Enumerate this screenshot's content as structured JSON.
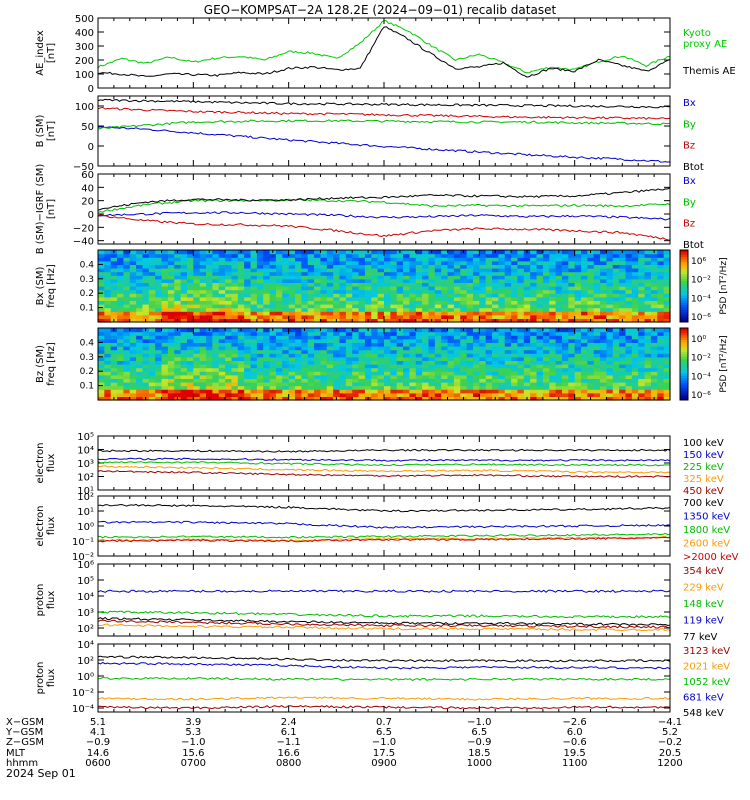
{
  "title": "GEO−KOMPSAT−2A 128.2E (2024−09−01) recalib dataset",
  "footer_date": "2024 Sep 01",
  "orbit": {
    "row_labels": [
      "X−GSM",
      "Y−GSM",
      "Z−GSM",
      "MLT",
      "hhmm"
    ],
    "columns": [
      [
        "5.1",
        "4.1",
        "−0.9",
        "14.6",
        "0600"
      ],
      [
        "3.9",
        "5.3",
        "−1.0",
        "15.6",
        "0700"
      ],
      [
        "2.4",
        "6.1",
        "−1.1",
        "16.6",
        "0800"
      ],
      [
        "0.7",
        "6.5",
        "−1.0",
        "17.5",
        "0900"
      ],
      [
        "−1.0",
        "6.5",
        "−0.9",
        "18.5",
        "1000"
      ],
      [
        "−2.6",
        "6.0",
        "−0.6",
        "19.5",
        "1100"
      ],
      [
        "−4.1",
        "5.2",
        "−0.2",
        "20.5",
        "1200"
      ]
    ]
  },
  "chart_data": [
    {
      "type": "line",
      "id": "ae",
      "ylabel": "AE_index\n[nT]",
      "ylim": [
        0,
        500
      ],
      "yticks": [
        "0",
        "100",
        "200",
        "300",
        "400",
        "500"
      ],
      "legend": [
        {
          "label": "Kyoto\nproxy AE",
          "color": "#00cc00"
        },
        {
          "label": "Themis AE",
          "color": "#000000"
        }
      ],
      "x": [
        6.0,
        6.25,
        6.5,
        6.75,
        7.0,
        7.25,
        7.5,
        7.75,
        8.0,
        8.25,
        8.5,
        8.75,
        9.0,
        9.25,
        9.5,
        9.75,
        10.0,
        10.25,
        10.5,
        10.75,
        11.0,
        11.25,
        11.5,
        11.75,
        12.0
      ],
      "series": [
        {
          "color": "#00cc00",
          "values": [
            150,
            210,
            175,
            220,
            185,
            215,
            225,
            200,
            260,
            250,
            210,
            320,
            480,
            410,
            300,
            200,
            240,
            180,
            110,
            150,
            130,
            190,
            230,
            160,
            230
          ]
        },
        {
          "color": "#000000",
          "values": [
            110,
            100,
            80,
            100,
            95,
            90,
            110,
            100,
            140,
            150,
            130,
            140,
            440,
            350,
            240,
            140,
            150,
            180,
            80,
            140,
            120,
            200,
            160,
            120,
            200
          ]
        }
      ]
    },
    {
      "type": "line",
      "id": "bsm",
      "ylabel": "B (SM)\n[nT]",
      "ylim": [
        -50,
        125
      ],
      "yticks": [
        "−50",
        "0",
        "50",
        "100"
      ],
      "legend": [
        {
          "label": "Bx",
          "color": "#0000cc"
        },
        {
          "label": "By",
          "color": "#00bb00"
        },
        {
          "label": "Bz",
          "color": "#cc0000"
        },
        {
          "label": "Btot",
          "color": "#000000"
        }
      ],
      "x": [
        6.0,
        6.5,
        7.0,
        7.5,
        8.0,
        8.5,
        9.0,
        9.5,
        10.0,
        10.5,
        11.0,
        11.5,
        12.0
      ],
      "series": [
        {
          "color": "#0000cc",
          "values": [
            48,
            42,
            33,
            24,
            15,
            7,
            -1,
            -8,
            -15,
            -22,
            -28,
            -33,
            -40
          ]
        },
        {
          "color": "#00bb00",
          "values": [
            43,
            52,
            60,
            62,
            63,
            63,
            62,
            61,
            60,
            60,
            58,
            57,
            55
          ]
        },
        {
          "color": "#cc0000",
          "values": [
            95,
            90,
            86,
            84,
            81,
            80,
            78,
            76,
            74,
            72,
            71,
            70,
            68
          ]
        },
        {
          "color": "#000000",
          "values": [
            115,
            113,
            111,
            108,
            106,
            105,
            104,
            103,
            102,
            101,
            100,
            99,
            97
          ]
        }
      ]
    },
    {
      "type": "line",
      "id": "bdiff",
      "ylabel": "B (SM)−IGRF (SM)\n[nT]",
      "ylim": [
        -45,
        60
      ],
      "yticks": [
        "−40",
        "−20",
        "0",
        "20",
        "40",
        "60"
      ],
      "legend": [
        {
          "label": "Bx",
          "color": "#0000cc"
        },
        {
          "label": "By",
          "color": "#00bb00"
        },
        {
          "label": "Bz",
          "color": "#cc0000"
        },
        {
          "label": "Btot",
          "color": "#000000"
        }
      ],
      "x": [
        6.0,
        6.5,
        7.0,
        7.5,
        8.0,
        8.5,
        9.0,
        9.5,
        10.0,
        10.5,
        11.0,
        11.5,
        12.0
      ],
      "series": [
        {
          "color": "#0000cc",
          "values": [
            -2,
            0,
            2,
            2,
            0,
            -2,
            -5,
            -4,
            -2,
            -4,
            -3,
            -5,
            -8
          ]
        },
        {
          "color": "#00bb00",
          "values": [
            3,
            14,
            20,
            20,
            21,
            20,
            18,
            12,
            13,
            12,
            13,
            12,
            15
          ]
        },
        {
          "color": "#cc0000",
          "values": [
            -2,
            -10,
            -15,
            -16,
            -18,
            -25,
            -33,
            -25,
            -22,
            -23,
            -25,
            -28,
            -38
          ]
        },
        {
          "color": "#000000",
          "values": [
            7,
            18,
            22,
            21,
            21,
            24,
            25,
            28,
            27,
            26,
            27,
            32,
            38
          ]
        }
      ]
    },
    {
      "type": "heatmap",
      "id": "bx_psd",
      "ylabel": "Bx (SM)\nfreq [Hz]",
      "yticks": [
        "0.1",
        "0.2",
        "0.3",
        "0.4"
      ],
      "colorbar": {
        "label": "PSD [nT²/Hz]",
        "ticks": [
          "10⁶",
          "10⁻²",
          "10⁻⁴",
          "10⁻⁶"
        ]
      }
    },
    {
      "type": "heatmap",
      "id": "bz_psd",
      "ylabel": "Bz (SM)\nfreq [Hz]",
      "yticks": [
        "0.1",
        "0.2",
        "0.3",
        "0.4"
      ],
      "colorbar": {
        "label": "PSD [nT²/Hz]",
        "ticks": [
          "10⁰",
          "10⁻²",
          "10⁻⁴",
          "10⁻⁶"
        ]
      }
    },
    {
      "type": "line",
      "id": "eflux1",
      "ylabel": "electron\nflux",
      "log": true,
      "ylim_exp": [
        1,
        5
      ],
      "yticks_exp": [
        1,
        2,
        3,
        4,
        5
      ],
      "legend": [
        {
          "label": "100 keV",
          "color": "#000000"
        },
        {
          "label": "150 keV",
          "color": "#0000cc"
        },
        {
          "label": "225 keV",
          "color": "#00bb00"
        },
        {
          "label": "325 keV",
          "color": "#ff9900"
        },
        {
          "label": "450 keV",
          "color": "#990000"
        }
      ],
      "x": [
        6.0,
        7.0,
        8.0,
        9.0,
        10.0,
        11.0,
        12.0
      ],
      "series": [
        {
          "color": "#000000",
          "values_exp": [
            3.9,
            3.9,
            3.85,
            3.95,
            3.95,
            3.95,
            3.95
          ]
        },
        {
          "color": "#0000cc",
          "values_exp": [
            3.3,
            3.3,
            3.25,
            3.2,
            3.2,
            3.2,
            3.2
          ]
        },
        {
          "color": "#00bb00",
          "values_exp": [
            3.05,
            3.05,
            2.95,
            2.85,
            2.9,
            2.85,
            2.85
          ]
        },
        {
          "color": "#ff9900",
          "values_exp": [
            2.75,
            2.65,
            2.5,
            2.4,
            2.45,
            2.35,
            2.3
          ]
        },
        {
          "color": "#990000",
          "values_exp": [
            2.4,
            2.3,
            2.15,
            2.05,
            2.1,
            2.0,
            2.0
          ]
        }
      ]
    },
    {
      "type": "line",
      "id": "eflux2",
      "ylabel": "electron\nflux",
      "log": true,
      "ylim_exp": [
        -2,
        2
      ],
      "yticks_exp": [
        -2,
        -1,
        0,
        1,
        2
      ],
      "legend": [
        {
          "label": "700 keV",
          "color": "#000000"
        },
        {
          "label": "1350 keV",
          "color": "#0000cc"
        },
        {
          "label": "1800 keV",
          "color": "#00bb00"
        },
        {
          "label": "2600 keV",
          "color": "#ff9900"
        },
        {
          "label": ">2000 keV",
          "color": "#cc0000"
        }
      ],
      "x": [
        6.0,
        7.0,
        8.0,
        9.0,
        10.0,
        11.0,
        12.0
      ],
      "series": [
        {
          "color": "#000000",
          "values_exp": [
            1.4,
            1.35,
            1.25,
            1.0,
            1.05,
            1.1,
            1.2
          ]
        },
        {
          "color": "#0000cc",
          "values_exp": [
            0.25,
            0.25,
            0.15,
            -0.1,
            -0.05,
            0.0,
            0.05
          ]
        },
        {
          "color": "#00bb00",
          "values_exp": [
            -0.75,
            -0.7,
            -0.75,
            -0.7,
            -0.65,
            -0.6,
            -0.55
          ]
        },
        {
          "color": "#ff9900",
          "values_exp": [
            -0.95,
            -0.9,
            -0.95,
            -0.85,
            -0.85,
            -0.8,
            -0.75
          ]
        },
        {
          "color": "#cc0000",
          "values_exp": [
            -1.0,
            -0.95,
            -1.0,
            -0.9,
            -0.9,
            -0.85,
            -0.8
          ]
        }
      ]
    },
    {
      "type": "line",
      "id": "pflux1",
      "ylabel": "proton\nflux",
      "log": true,
      "ylim_exp": [
        1.5,
        6
      ],
      "yticks_exp": [
        2,
        3,
        4,
        5,
        6
      ],
      "legend": [
        {
          "label": "354 keV",
          "color": "#990000"
        },
        {
          "label": "229 keV",
          "color": "#ff9900"
        },
        {
          "label": "148 keV",
          "color": "#00bb00"
        },
        {
          "label": "119 keV",
          "color": "#0000cc"
        },
        {
          "label": "77 keV",
          "color": "#000000"
        }
      ],
      "x": [
        6.0,
        7.0,
        8.0,
        9.0,
        10.0,
        11.0,
        12.0
      ],
      "series": [
        {
          "color": "#0000cc",
          "values_exp": [
            4.3,
            4.3,
            4.3,
            4.3,
            4.3,
            4.3,
            4.3
          ]
        },
        {
          "color": "#00bb00",
          "values_exp": [
            3.0,
            2.95,
            2.85,
            2.75,
            2.75,
            2.7,
            2.7
          ]
        },
        {
          "color": "#990000",
          "values_exp": [
            2.45,
            2.35,
            2.25,
            2.15,
            2.15,
            2.1,
            2.05
          ]
        },
        {
          "color": "#ff9900",
          "values_exp": [
            2.2,
            2.1,
            2.05,
            1.95,
            1.95,
            1.9,
            1.9
          ]
        },
        {
          "color": "#000000",
          "values_exp": [
            2.6,
            2.5,
            2.4,
            2.3,
            2.3,
            2.25,
            2.2
          ]
        }
      ]
    },
    {
      "type": "line",
      "id": "pflux2",
      "ylabel": "proton\nflux",
      "log": true,
      "ylim_exp": [
        -4.5,
        4
      ],
      "yticks_exp": [
        -4,
        -2,
        0,
        2,
        4
      ],
      "legend": [
        {
          "label": "3123 keV",
          "color": "#990000"
        },
        {
          "label": "2021 keV",
          "color": "#ff9900"
        },
        {
          "label": "1052 keV",
          "color": "#00bb00"
        },
        {
          "label": "681 keV",
          "color": "#0000cc"
        },
        {
          "label": "548 keV",
          "color": "#000000"
        }
      ],
      "x": [
        6.0,
        7.0,
        8.0,
        9.0,
        10.0,
        11.0,
        12.0
      ],
      "series": [
        {
          "color": "#000000",
          "values_exp": [
            2.4,
            2.3,
            2.1,
            1.9,
            1.9,
            1.9,
            1.9
          ]
        },
        {
          "color": "#0000cc",
          "values_exp": [
            1.6,
            1.5,
            1.3,
            1.0,
            1.1,
            1.05,
            1.0
          ]
        },
        {
          "color": "#00bb00",
          "values_exp": [
            -0.3,
            -0.3,
            -0.4,
            -0.45,
            -0.4,
            -0.4,
            -0.4
          ]
        },
        {
          "color": "#ff9900",
          "values_exp": [
            -2.8,
            -2.9,
            -2.7,
            -2.8,
            -2.9,
            -2.8,
            -2.8
          ]
        },
        {
          "color": "#990000",
          "values_exp": [
            -3.9,
            -4.0,
            -3.8,
            -3.9,
            -4.0,
            -3.9,
            -3.9
          ]
        }
      ]
    }
  ]
}
